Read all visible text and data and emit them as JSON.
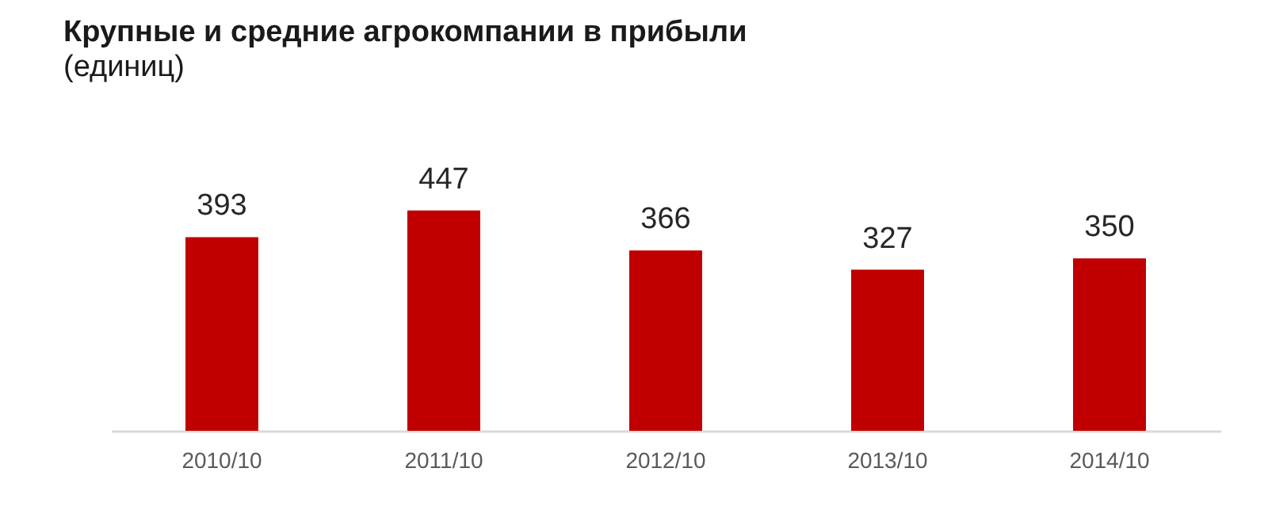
{
  "chart_data": {
    "type": "bar",
    "title": "Крупные  и средние агрокомпании  в прибыли",
    "subtitle": "(единиц)",
    "categories": [
      "2010/10",
      "2011/10",
      "2012/10",
      "2013/10",
      "2014/10"
    ],
    "values": [
      393,
      447,
      366,
      327,
      350
    ],
    "color": "#c00000",
    "tick_labels": "x",
    "data_labels": true
  }
}
